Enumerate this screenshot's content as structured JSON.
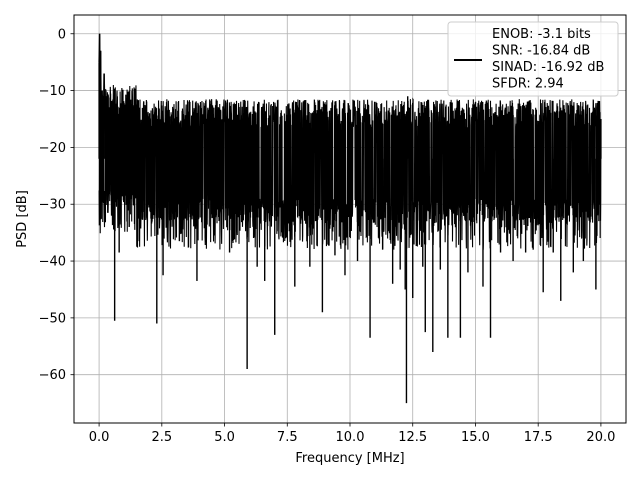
{
  "chart_data": {
    "type": "line",
    "title": "",
    "xlabel": "Frequency [MHz]",
    "ylabel": "PSD [dB]",
    "xlim": [
      -1,
      21
    ],
    "ylim": [
      -68.5,
      3.3
    ],
    "xticks": [
      0.0,
      2.5,
      5.0,
      7.5,
      10.0,
      12.5,
      15.0,
      17.5,
      20.0
    ],
    "xtick_labels": [
      "0.0",
      "2.5",
      "5.0",
      "7.5",
      "10.0",
      "12.5",
      "15.0",
      "17.5",
      "20.0"
    ],
    "yticks": [
      0,
      -10,
      -20,
      -30,
      -40,
      -50,
      -60
    ],
    "ytick_labels": [
      "0",
      "−10",
      "−20",
      "−30",
      "−40",
      "−50",
      "−60"
    ],
    "grid": true,
    "legend_position": "top-right",
    "series": [
      {
        "name": "ENOB: -3.1 bits\nSNR: -16.84 dB\nSINAD: -16.92 dB\nSFDR: 2.94",
        "color": "#000000",
        "noise": {
          "x_start": 0.0,
          "x_end": 20.0,
          "upper_db": -14.0,
          "lower_db": -29.0,
          "floor_db": -33.0
        },
        "points": [
          [
            0.0,
            -5.0
          ],
          [
            0.02,
            0.0
          ],
          [
            0.04,
            -8.0
          ],
          [
            0.06,
            -3.0
          ],
          [
            0.08,
            -14.0
          ],
          [
            0.1,
            -25.0
          ],
          [
            0.12,
            -10.0
          ],
          [
            0.15,
            -22.0
          ],
          [
            0.2,
            -7.0
          ],
          [
            0.25,
            -18.0
          ],
          [
            0.3,
            -11.0
          ],
          [
            0.35,
            -31.5
          ],
          [
            0.45,
            -13.0
          ],
          [
            0.5,
            -32.0
          ],
          [
            0.62,
            -50.5
          ],
          [
            0.8,
            -38.5
          ],
          [
            1.2,
            -34.0
          ],
          [
            1.6,
            -36.5
          ],
          [
            2.3,
            -51.0
          ],
          [
            2.55,
            -42.5
          ],
          [
            3.2,
            -36.5
          ],
          [
            3.9,
            -43.5
          ],
          [
            4.6,
            -35.5
          ],
          [
            5.2,
            -38.5
          ],
          [
            5.9,
            -59.0
          ],
          [
            6.3,
            -41.0
          ],
          [
            6.6,
            -43.5
          ],
          [
            7.0,
            -53.0
          ],
          [
            7.8,
            -44.5
          ],
          [
            8.4,
            -41.0
          ],
          [
            8.9,
            -49.0
          ],
          [
            9.4,
            -39.0
          ],
          [
            9.8,
            -42.5
          ],
          [
            10.0,
            -26.5
          ],
          [
            10.3,
            -40.0
          ],
          [
            10.8,
            -53.5
          ],
          [
            11.3,
            -38.0
          ],
          [
            11.7,
            -44.0
          ],
          [
            12.0,
            -41.5
          ],
          [
            12.2,
            -45.0
          ],
          [
            12.25,
            -65.0
          ],
          [
            12.3,
            -11.0
          ],
          [
            12.5,
            -46.5
          ],
          [
            12.9,
            -41.0
          ],
          [
            13.0,
            -52.5
          ],
          [
            13.3,
            -56.0
          ],
          [
            13.6,
            -41.5
          ],
          [
            13.9,
            -53.5
          ],
          [
            14.4,
            -53.5
          ],
          [
            14.7,
            -42.0
          ],
          [
            15.3,
            -44.5
          ],
          [
            15.6,
            -53.5
          ],
          [
            16.0,
            -38.5
          ],
          [
            16.5,
            -40.0
          ],
          [
            17.0,
            -38.5
          ],
          [
            17.3,
            -38.0
          ],
          [
            17.7,
            -45.5
          ],
          [
            18.1,
            -38.5
          ],
          [
            18.4,
            -47.0
          ],
          [
            18.9,
            -42.0
          ],
          [
            19.3,
            -40.0
          ],
          [
            19.8,
            -45.0
          ],
          [
            20.0,
            -15.0
          ]
        ]
      }
    ]
  }
}
